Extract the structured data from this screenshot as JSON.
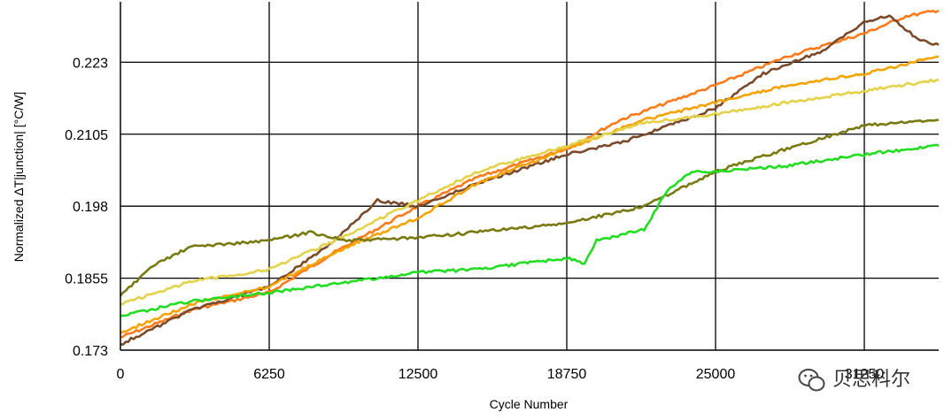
{
  "chart_data": {
    "type": "line",
    "xlabel": "Cycle Number",
    "ylabel": "Normalized ΔT|junction| [°C/W]",
    "x_ticks": [
      0,
      6250,
      12500,
      18750,
      25000,
      31250
    ],
    "y_ticks": [
      0.173,
      0.1855,
      0.198,
      0.2105,
      0.223
    ],
    "y_tick_labels": [
      "0.173",
      "0.1855",
      "0.198",
      "0.2105",
      "0.223"
    ],
    "xlim": [
      0,
      34375
    ],
    "ylim": [
      0.173,
      0.2335
    ],
    "grid": true,
    "series": [
      {
        "color": "#FF7A1A",
        "x": [
          0,
          3000,
          6250,
          9000,
          12500,
          15000,
          18750,
          21000,
          25000,
          28000,
          31250,
          33000,
          34375
        ],
        "y": [
          0.1752,
          0.18,
          0.183,
          0.19,
          0.198,
          0.203,
          0.208,
          0.213,
          0.219,
          0.224,
          0.228,
          0.231,
          0.232
        ]
      },
      {
        "color": "#7B4A2A",
        "x": [
          0,
          3000,
          6250,
          9000,
          10800,
          12500,
          15000,
          18750,
          21000,
          25000,
          27000,
          29500,
          31250,
          32300,
          33500,
          34375
        ],
        "y": [
          0.174,
          0.18,
          0.184,
          0.192,
          0.199,
          0.198,
          0.202,
          0.207,
          0.209,
          0.215,
          0.221,
          0.225,
          0.23,
          0.231,
          0.227,
          0.226
        ]
      },
      {
        "color": "#F5A300",
        "x": [
          0,
          3000,
          6250,
          9000,
          12500,
          15000,
          18750,
          22000,
          25000,
          28000,
          31250,
          34375
        ],
        "y": [
          0.176,
          0.181,
          0.184,
          0.19,
          0.196,
          0.202,
          0.208,
          0.213,
          0.216,
          0.219,
          0.221,
          0.224
        ]
      },
      {
        "color": "#E3D24A",
        "x": [
          0,
          3000,
          6250,
          9000,
          12500,
          15000,
          18750,
          22000,
          25000,
          28000,
          31250,
          34375
        ],
        "y": [
          0.181,
          0.185,
          0.187,
          0.192,
          0.199,
          0.204,
          0.2085,
          0.2125,
          0.214,
          0.216,
          0.218,
          0.22
        ]
      },
      {
        "color": "#7A7A12",
        "x": [
          0,
          1500,
          3000,
          6250,
          8000,
          9500,
          12500,
          15000,
          18750,
          22000,
          25000,
          28000,
          31250,
          34375
        ],
        "y": [
          0.1825,
          0.188,
          0.191,
          0.192,
          0.1935,
          0.192,
          0.1925,
          0.1935,
          0.195,
          0.198,
          0.204,
          0.208,
          0.212,
          0.213
        ]
      },
      {
        "color": "#22DD22",
        "x": [
          0,
          3000,
          6250,
          9000,
          12500,
          15000,
          18750,
          19500,
          20000,
          22000,
          22300,
          23000,
          24000,
          25000,
          28000,
          31250,
          34375
        ],
        "y": [
          0.179,
          0.1815,
          0.183,
          0.1845,
          0.1865,
          0.187,
          0.189,
          0.188,
          0.192,
          0.194,
          0.196,
          0.201,
          0.204,
          0.204,
          0.205,
          0.207,
          0.2085
        ]
      }
    ]
  },
  "watermark": {
    "text": "贝思科尔"
  }
}
